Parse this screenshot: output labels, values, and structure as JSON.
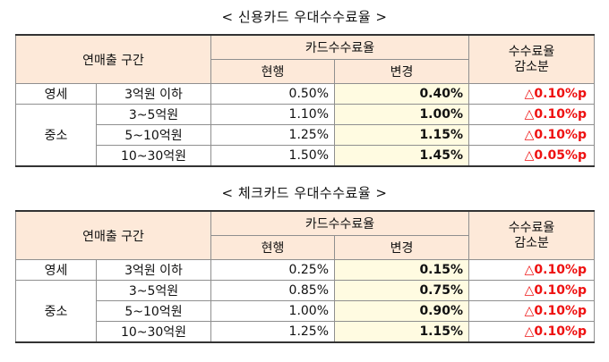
{
  "credit": {
    "title": "< 신용카드 우대수수료율 >",
    "h_range": "연매출 구간",
    "h_fee": "카드수수료율",
    "h_current": "현행",
    "h_changed": "변경",
    "h_reduce": "수수료율\n감소분",
    "rows": [
      {
        "seg": "영세",
        "range": "3억원 이하",
        "current": "0.50%",
        "changed": "0.40%",
        "reduce": "△0.10%p"
      },
      {
        "seg": "중소",
        "range": "3~5억원",
        "current": "1.10%",
        "changed": "1.00%",
        "reduce": "△0.10%p"
      },
      {
        "seg": "",
        "range": "5~10억원",
        "current": "1.25%",
        "changed": "1.15%",
        "reduce": "△0.10%p"
      },
      {
        "seg": "",
        "range": "10~30억원",
        "current": "1.50%",
        "changed": "1.45%",
        "reduce": "△0.05%p"
      }
    ]
  },
  "check": {
    "title": "< 체크카드 우대수수료율 >",
    "h_range": "연매출 구간",
    "h_fee": "카드수수료율",
    "h_current": "현행",
    "h_changed": "변경",
    "h_reduce": "수수료율\n감소분",
    "rows": [
      {
        "seg": "영세",
        "range": "3억원 이하",
        "current": "0.25%",
        "changed": "0.15%",
        "reduce": "△0.10%p"
      },
      {
        "seg": "중소",
        "range": "3~5억원",
        "current": "0.85%",
        "changed": "0.75%",
        "reduce": "△0.10%p"
      },
      {
        "seg": "",
        "range": "5~10억원",
        "current": "1.00%",
        "changed": "0.90%",
        "reduce": "△0.10%p"
      },
      {
        "seg": "",
        "range": "10~30억원",
        "current": "1.25%",
        "changed": "1.15%",
        "reduce": "△0.10%p"
      }
    ]
  }
}
